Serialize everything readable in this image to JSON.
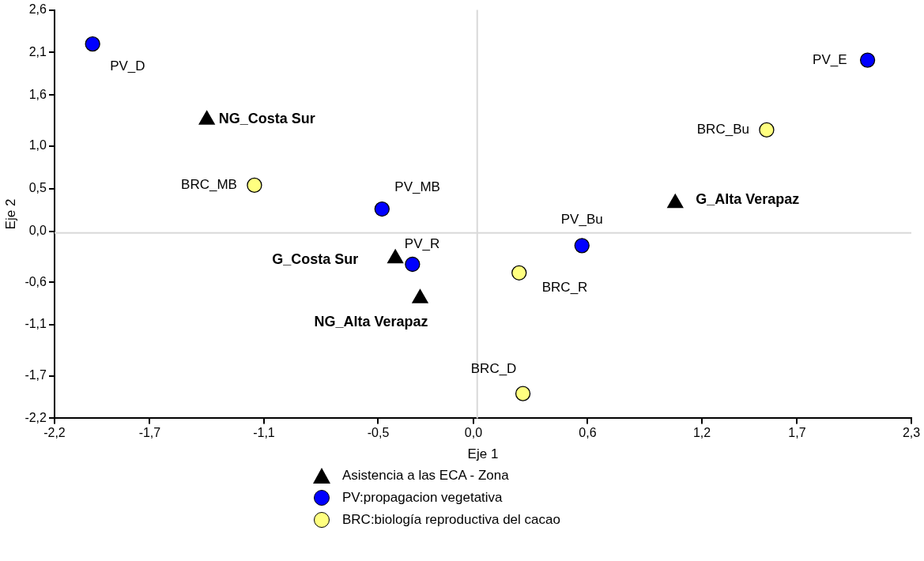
{
  "chart_data": {
    "type": "scatter",
    "xlabel": "Eje 1",
    "ylabel": "Eje 2",
    "xlim": [
      -2.2,
      2.3
    ],
    "xticks": [
      {
        "value": -2.2,
        "label": "-2,2"
      },
      {
        "value": -1.7,
        "label": "-1,7"
      },
      {
        "value": -1.1,
        "label": "-1,1"
      },
      {
        "value": -0.5,
        "label": "-0,5"
      },
      {
        "value": 0.0,
        "label": "0,0"
      },
      {
        "value": 0.6,
        "label": "0,6"
      },
      {
        "value": 1.2,
        "label": "1,2"
      },
      {
        "value": 1.7,
        "label": "1,7"
      },
      {
        "value": 2.3,
        "label": "2,3"
      }
    ],
    "ylim": [
      -2.2,
      2.6
    ],
    "yticks": [
      {
        "value": -2.2,
        "label": "-2,2"
      },
      {
        "value": -1.7,
        "label": "-1,7"
      },
      {
        "value": -1.1,
        "label": "-1,1"
      },
      {
        "value": -0.6,
        "label": "-0,6"
      },
      {
        "value": 0.0,
        "label": "0,0"
      },
      {
        "value": 0.5,
        "label": "0,5"
      },
      {
        "value": 1.0,
        "label": "1,0"
      },
      {
        "value": 1.6,
        "label": "1,6"
      },
      {
        "value": 2.1,
        "label": "2,1"
      },
      {
        "value": 2.6,
        "label": "2,6"
      }
    ],
    "grid": false,
    "legend": "bottom",
    "series": [
      {
        "name": "Asistencia a las ECA - Zona",
        "color": "#000000",
        "marker": "triangle",
        "x": [
          -1.4,
          -0.41,
          -0.28,
          1.06
        ],
        "values": [
          1.31,
          -0.32,
          -0.79,
          0.33
        ]
      },
      {
        "name": "PV:propagacion vegetativa",
        "color": "#0000ff",
        "marker": "circle",
        "x": [
          -2.0,
          -0.48,
          -0.32,
          2.07,
          0.57
        ],
        "values": [
          2.2,
          0.26,
          -0.39,
          2.01,
          -0.17
        ]
      },
      {
        "name": "BRC:biología reproductiva del cacao",
        "color": "#ffff80",
        "marker": "circle",
        "x": [
          -1.15,
          1.54,
          0.24,
          0.26
        ],
        "values": [
          0.54,
          1.19,
          -0.49,
          -1.91
        ]
      }
    ],
    "ref_lines": [
      {
        "axis": "x",
        "value": 0.02,
        "color": "#d9d9d9"
      },
      {
        "axis": "y",
        "value": -0.02,
        "color": "#d9d9d9"
      }
    ],
    "annotations": [
      {
        "text": "PV_D",
        "x": -2.0,
        "y": 2.2
      },
      {
        "text": "NG_Costa Sur",
        "x": -1.4,
        "y": 1.31
      },
      {
        "text": "BRC_MB",
        "x": -1.15,
        "y": 0.54
      },
      {
        "text": "PV_MB",
        "x": -0.48,
        "y": 0.26
      },
      {
        "text": "G_Costa Sur",
        "x": -0.41,
        "y": -0.32
      },
      {
        "text": "PV_R",
        "x": -0.32,
        "y": -0.39
      },
      {
        "text": "NG_Alta Verapaz",
        "x": -0.28,
        "y": -0.79
      },
      {
        "text": "PV_E",
        "x": 2.07,
        "y": 2.01
      },
      {
        "text": "BRC_Bu",
        "x": 1.54,
        "y": 1.19
      },
      {
        "text": "G_Alta Verapaz",
        "x": 1.06,
        "y": 0.33
      },
      {
        "text": "PV_Bu",
        "x": 0.57,
        "y": -0.17
      },
      {
        "text": "BRC_R",
        "x": 0.24,
        "y": -0.49
      },
      {
        "text": "BRC_D",
        "x": 0.26,
        "y": -1.91
      }
    ]
  }
}
